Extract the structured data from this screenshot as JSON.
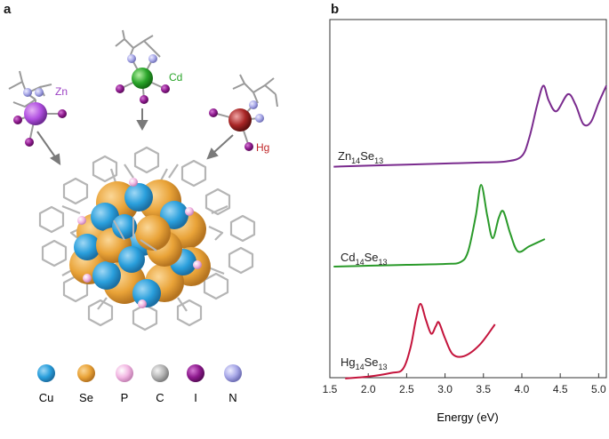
{
  "panel_a": {
    "letter": "a",
    "metals": [
      {
        "label": "Zn",
        "color": "#9b3fc4"
      },
      {
        "label": "Cd",
        "color": "#2aa52a"
      },
      {
        "label": "Hg",
        "color": "#c0282a"
      }
    ],
    "legend": [
      {
        "label": "Cu",
        "color": "#2a9fdc"
      },
      {
        "label": "Se",
        "color": "#e9a338"
      },
      {
        "label": "P",
        "color": "#f2b6e2"
      },
      {
        "label": "C",
        "color": "#b5b5b5"
      },
      {
        "label": "I",
        "color": "#8e1a8e"
      },
      {
        "label": "N",
        "color": "#a8a8e8"
      }
    ]
  },
  "panel_b": {
    "letter": "b",
    "chart_data": {
      "type": "line",
      "xlabel": "Energy (eV)",
      "ylabel": "",
      "xlim": [
        1.5,
        5.1
      ],
      "xticks": [
        "1.5",
        "2.0",
        "2.5",
        "3.0",
        "3.5",
        "4.0",
        "4.5",
        "5.0"
      ],
      "grid": false,
      "series": [
        {
          "name": "Zn14Se13",
          "label_main": "Zn",
          "label_sub1": "14",
          "label_main2": "Se",
          "label_sub2": "13",
          "color": "#7a2b8e",
          "x": [
            1.55,
            2.0,
            2.5,
            3.0,
            3.5,
            3.8,
            4.0,
            4.1,
            4.2,
            4.28,
            4.35,
            4.45,
            4.6,
            4.7,
            4.8,
            4.9,
            5.0,
            5.1
          ],
          "y": [
            0.02,
            0.03,
            0.04,
            0.05,
            0.06,
            0.07,
            0.12,
            0.3,
            0.6,
            0.78,
            0.64,
            0.54,
            0.7,
            0.6,
            0.42,
            0.44,
            0.62,
            0.78
          ]
        },
        {
          "name": "Cd14Se13",
          "label_main": "Cd",
          "label_sub1": "14",
          "label_main2": "Se",
          "label_sub2": "13",
          "color": "#2a9a2a",
          "x": [
            1.55,
            2.0,
            2.5,
            3.0,
            3.2,
            3.3,
            3.4,
            3.47,
            3.55,
            3.62,
            3.7,
            3.76,
            3.85,
            3.95,
            4.1,
            4.3
          ],
          "y": [
            0.03,
            0.04,
            0.05,
            0.06,
            0.08,
            0.2,
            0.6,
            0.95,
            0.6,
            0.35,
            0.58,
            0.65,
            0.4,
            0.2,
            0.26,
            0.34
          ]
        },
        {
          "name": "Hg14Se13",
          "label_main": "Hg",
          "label_sub1": "14",
          "label_main2": "Se",
          "label_sub2": "13",
          "color": "#c4143c",
          "x": [
            1.7,
            2.0,
            2.3,
            2.45,
            2.55,
            2.62,
            2.68,
            2.75,
            2.82,
            2.88,
            2.92,
            3.0,
            3.1,
            3.25,
            3.45,
            3.65
          ],
          "y": [
            0.02,
            0.04,
            0.08,
            0.12,
            0.35,
            0.65,
            0.82,
            0.65,
            0.5,
            0.58,
            0.62,
            0.45,
            0.28,
            0.26,
            0.38,
            0.6
          ]
        }
      ]
    }
  }
}
